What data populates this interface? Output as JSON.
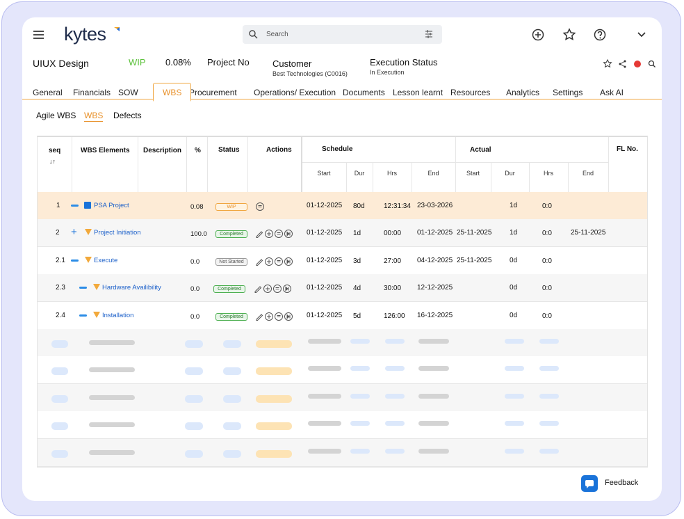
{
  "header": {
    "logo": "kytes",
    "search_placeholder": "Search"
  },
  "project": {
    "name": "UIUX Design",
    "status": "WIP",
    "percent": "0.08%",
    "project_no_label": "Project No",
    "customer_label": "Customer",
    "customer": "Best Technologies (C0016)",
    "execution_label": "Execution Status",
    "execution": "In Execution"
  },
  "tabs": [
    "General",
    "Financials",
    "SOW",
    "WBS",
    "Procurement",
    "Operations/ Execution",
    "Documents",
    "Lesson learnt",
    "Resources",
    "Analytics",
    "Settings",
    "Ask AI"
  ],
  "subtabs": [
    "Agile WBS",
    "WBS",
    "Defects"
  ],
  "table": {
    "headers": {
      "seq": "seq",
      "sort": "↓↑",
      "elements": "WBS Elements",
      "description": "Description",
      "pct": "%",
      "status": "Status",
      "actions": "Actions",
      "schedule": "Schedule",
      "actual": "Actual",
      "fl": "FL No.",
      "start": "Start",
      "dur": "Dur",
      "hrs": "Hrs",
      "end": "End"
    },
    "rows": [
      {
        "seq": "1",
        "name": "PSA Project",
        "pct": "0.08",
        "status": "WIP",
        "s_start": "01-12-2025",
        "s_dur": "80d",
        "s_hrs": "12:31:34",
        "s_end": "23-03-2026",
        "a_dur": "1d",
        "a_hrs": "0:0"
      },
      {
        "seq": "2",
        "name": "Project Initiation",
        "pct": "100.0",
        "status": "Completed",
        "s_start": "01-12-2025",
        "s_dur": "1d",
        "s_hrs": "00:00",
        "s_end": "01-12-2025",
        "a_start": "25-11-2025",
        "a_dur": "1d",
        "a_hrs": "0:0",
        "a_end": "25-11-2025"
      },
      {
        "seq": "2.1",
        "name": "Execute",
        "pct": "0.0",
        "status": "Not Started",
        "s_start": "01-12-2025",
        "s_dur": "3d",
        "s_hrs": "27:00",
        "s_end": "04-12-2025",
        "a_start": "25-11-2025",
        "a_dur": "0d",
        "a_hrs": "0:0"
      },
      {
        "seq": "2.3",
        "name": "Hardware Availibility",
        "pct": "0.0",
        "status": "Completed",
        "s_start": "01-12-2025",
        "s_dur": "4d",
        "s_hrs": "30:00",
        "s_end": "12-12-2025",
        "a_dur": "0d",
        "a_hrs": "0:0"
      },
      {
        "seq": "2.4",
        "name": "Installation",
        "pct": "0.0",
        "status": "Completed",
        "s_start": "01-12-2025",
        "s_dur": "5d",
        "s_hrs": "126:00",
        "s_end": "16-12-2025",
        "a_dur": "0d",
        "a_hrs": "0:0"
      }
    ]
  },
  "feedback": "Feedback"
}
